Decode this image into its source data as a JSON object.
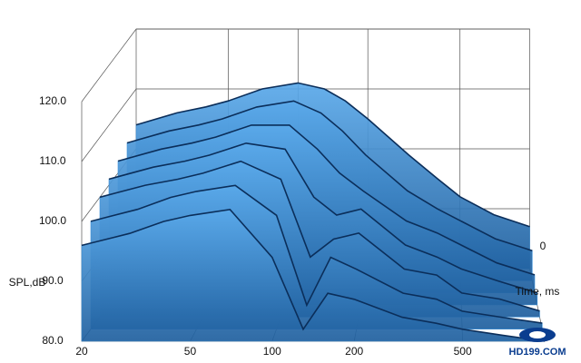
{
  "chart_data": {
    "type": "waterfall",
    "y_label": "SPL,dB",
    "z_label": "Time, ms",
    "z_start_label": "0",
    "x": [
      20,
      30,
      40,
      50,
      70,
      100,
      130,
      160,
      200,
      300,
      400,
      500,
      700,
      1000
    ],
    "xlim": [
      20,
      1000
    ],
    "xscale": "log",
    "xticks": [
      20,
      50,
      100,
      200,
      500
    ],
    "ylim": [
      80,
      120
    ],
    "yticks": [
      {
        "value": 80,
        "label": "80.0"
      },
      {
        "value": 90,
        "label": "90.0"
      },
      {
        "value": 100,
        "label": "100.0"
      },
      {
        "value": 110,
        "label": "110.0"
      },
      {
        "value": 120,
        "label": "120.0"
      }
    ],
    "grid": true,
    "color": "#3b8fd8",
    "slices": [
      {
        "values": [
          104,
          106,
          107,
          108,
          110,
          111,
          110,
          108,
          105,
          99,
          95,
          92,
          89,
          87
        ]
      },
      {
        "values": [
          103,
          105,
          106,
          107,
          109,
          110,
          108,
          105,
          101,
          95,
          92,
          90,
          87,
          85
        ]
      },
      {
        "values": [
          102,
          104,
          105,
          106,
          108,
          108,
          104,
          100,
          97,
          92,
          90,
          88,
          85,
          83
        ]
      },
      {
        "values": [
          101,
          103,
          104,
          105,
          107,
          106,
          98,
          95,
          96,
          90,
          88,
          86,
          84,
          82
        ]
      },
      {
        "values": [
          100,
          102,
          103,
          104,
          106,
          103,
          90,
          93,
          94,
          88,
          87,
          84,
          83,
          81
        ]
      },
      {
        "values": [
          98,
          100,
          102,
          103,
          104,
          99,
          84,
          92,
          90,
          86,
          85,
          83,
          82,
          81
        ]
      },
      {
        "values": [
          96,
          98,
          100,
          101,
          102,
          94,
          82,
          88,
          87,
          84,
          83,
          82,
          81,
          80
        ]
      }
    ]
  },
  "watermark": "HD199.COM"
}
